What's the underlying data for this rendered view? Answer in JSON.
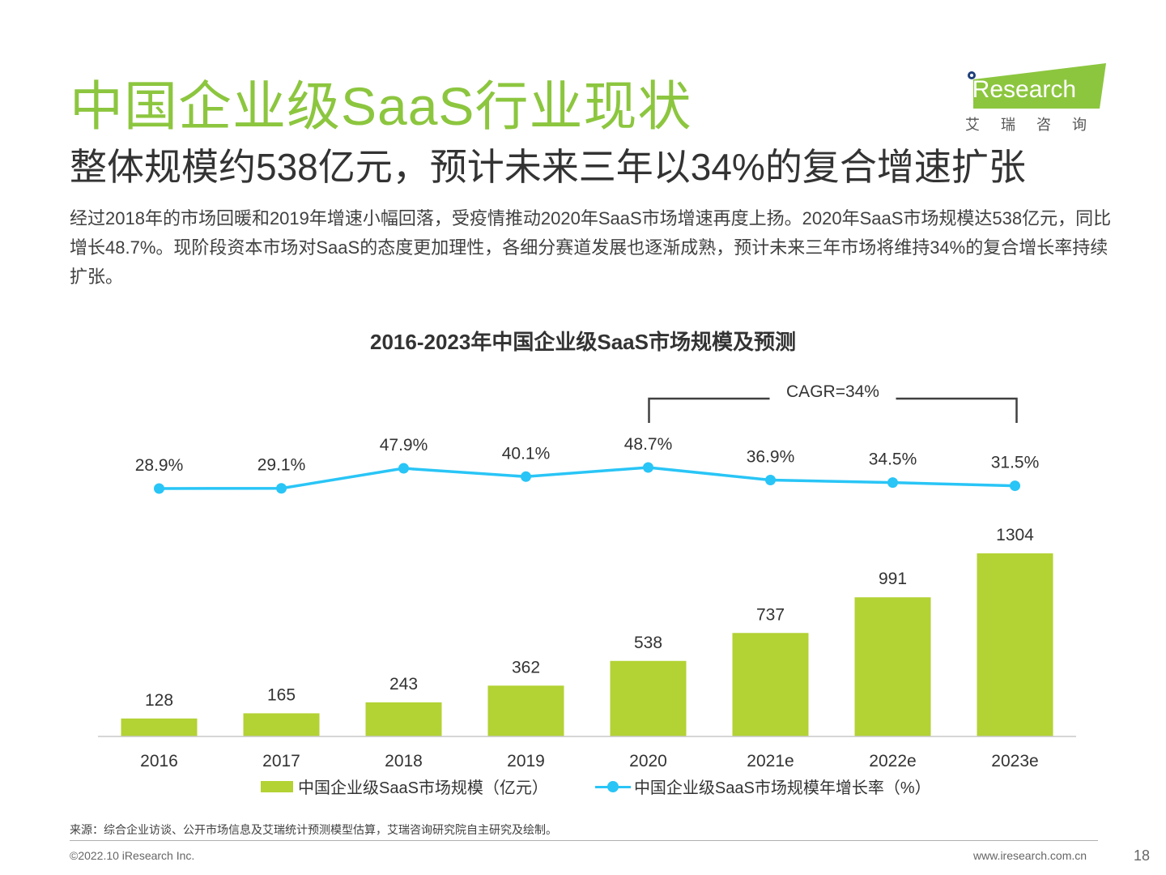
{
  "header": {
    "title": "中国企业级SaaS行业现状",
    "subtitle": "整体规模约538亿元，预计未来三年以34%的复合增速扩张",
    "description": "经过2018年的市场回暖和2019年增速小幅回落，受疫情推动2020年SaaS市场增速再度上扬。2020年SaaS市场规模达538亿元，同比增长48.7%。现阶段资本市场对SaaS的态度更加理性，各细分赛道发展也逐渐成熟，预计未来三年市场将维持34%的复合增长率持续扩张。"
  },
  "logo": {
    "text": "iResearch",
    "tagline": "艾瑞咨询"
  },
  "chart_data": {
    "type": "bar",
    "title": "2016-2023年中国企业级SaaS市场规模及预测",
    "categories": [
      "2016",
      "2017",
      "2018",
      "2019",
      "2020",
      "2021e",
      "2022e",
      "2023e"
    ],
    "series": [
      {
        "name": "中国企业级SaaS市场规模（亿元）",
        "type": "bar",
        "values": [
          128,
          165,
          243,
          362,
          538,
          737,
          991,
          1304
        ],
        "labels": [
          "128",
          "165",
          "243",
          "362",
          "538",
          "737",
          "991",
          "1304"
        ]
      },
      {
        "name": "中国企业级SaaS市场规模年增长率（%）",
        "type": "line",
        "values": [
          28.9,
          29.1,
          47.9,
          40.1,
          48.7,
          36.9,
          34.5,
          31.5
        ],
        "labels": [
          "28.9%",
          "29.1%",
          "47.9%",
          "40.1%",
          "48.7%",
          "36.9%",
          "34.5%",
          "31.5%"
        ]
      }
    ],
    "annotation": {
      "text": "CAGR=34%",
      "from": "2020",
      "to": "2023e"
    },
    "ylim": [
      0,
      1304
    ],
    "line_ylim": [
      28.9,
      48.7
    ],
    "colors": {
      "bar": "#b3d234",
      "line": "#29c5f6"
    },
    "legend_position": "bottom"
  },
  "legend": {
    "bar_label": "中国企业级SaaS市场规模（亿元）",
    "line_label": "中国企业级SaaS市场规模年增长率（%）"
  },
  "footer": {
    "source": "来源：综合企业访谈、公开市场信息及艾瑞统计预测模型估算，艾瑞咨询研究院自主研究及绘制。",
    "copyright": "©2022.10 iResearch Inc.",
    "site": "www.iresearch.com.cn",
    "page": "18"
  }
}
